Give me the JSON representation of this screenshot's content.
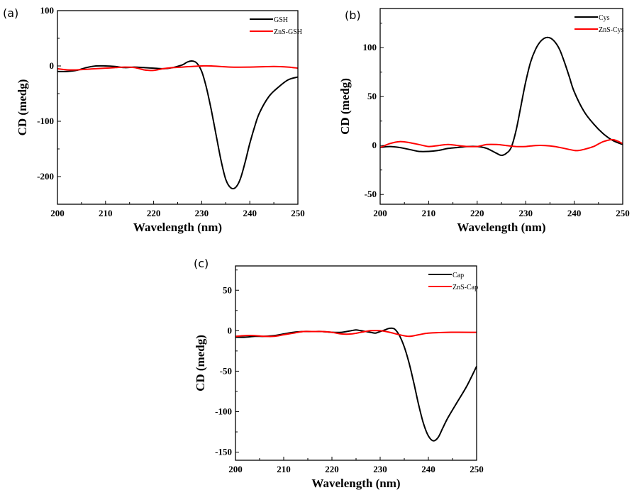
{
  "chart_data": [
    {
      "type": "line",
      "panel_label": "(a)",
      "xlabel": "Wavelength (nm)",
      "ylabel": "CD (medg)",
      "xlim": [
        200,
        250
      ],
      "ylim": [
        -250,
        100
      ],
      "xticks": [
        200,
        210,
        220,
        230,
        240,
        250
      ],
      "yticks": [
        100,
        0,
        -100,
        -200
      ],
      "legend_position": "top-right",
      "grid": false,
      "series": [
        {
          "name": "GSH",
          "color": "#000000",
          "x": [
            200,
            202,
            204,
            206,
            208,
            210,
            212,
            214,
            216,
            218,
            220,
            222,
            224,
            226,
            227,
            228,
            229,
            230,
            231,
            232,
            233,
            234,
            235,
            236,
            237,
            238,
            239,
            240,
            241,
            242,
            244,
            246,
            248,
            250
          ],
          "y": [
            -10,
            -10,
            -8,
            -3,
            0,
            0,
            -1,
            -3,
            -2,
            -3,
            -4,
            -5,
            -3,
            2,
            7,
            9,
            5,
            -10,
            -40,
            -80,
            -125,
            -170,
            -205,
            -220,
            -220,
            -205,
            -175,
            -140,
            -110,
            -85,
            -55,
            -38,
            -25,
            -20
          ]
        },
        {
          "name": "ZnS-GSH",
          "color": "#ff0000",
          "x": [
            200,
            202,
            204,
            206,
            208,
            210,
            212,
            214,
            216,
            218,
            219,
            220,
            222,
            224,
            226,
            228,
            230,
            232,
            236,
            240,
            245,
            248,
            250
          ],
          "y": [
            -5,
            -7,
            -7,
            -6,
            -5,
            -4,
            -3,
            -2,
            -3,
            -7,
            -8,
            -8,
            -5,
            -3,
            -2,
            -1,
            0,
            0,
            -2,
            -2,
            -1,
            -2,
            -4
          ]
        }
      ]
    },
    {
      "type": "line",
      "panel_label": "(b)",
      "xlabel": "Wavelength (nm)",
      "ylabel": "CD (medg)",
      "xlim": [
        200,
        250
      ],
      "ylim": [
        -60,
        140
      ],
      "xticks": [
        200,
        210,
        220,
        230,
        240,
        250
      ],
      "yticks": [
        100,
        50,
        0,
        -50
      ],
      "legend_position": "top-right",
      "grid": false,
      "series": [
        {
          "name": "Cys",
          "color": "#000000",
          "x": [
            200,
            202,
            204,
            206,
            208,
            210,
            212,
            214,
            216,
            218,
            220,
            222,
            224,
            225,
            226,
            227,
            228,
            229,
            230,
            231,
            232,
            233,
            234,
            235,
            236,
            237,
            238,
            239,
            240,
            242,
            244,
            246,
            248,
            250
          ],
          "y": [
            -2,
            -1,
            -2,
            -4,
            -6,
            -6,
            -5,
            -3,
            -2,
            -1,
            -1,
            -3,
            -8,
            -10,
            -8,
            -2,
            15,
            40,
            65,
            85,
            98,
            106,
            110,
            110,
            106,
            98,
            85,
            70,
            55,
            35,
            22,
            12,
            5,
            1
          ]
        },
        {
          "name": "ZnS-Cys",
          "color": "#ff0000",
          "x": [
            200,
            202,
            204,
            206,
            208,
            210,
            212,
            214,
            216,
            218,
            220,
            222,
            224,
            226,
            228,
            230,
            232,
            234,
            236,
            238,
            240,
            241,
            242,
            244,
            246,
            248,
            250
          ],
          "y": [
            -2,
            2,
            4,
            3,
            1,
            -1,
            0,
            1,
            0,
            -1,
            -1,
            1,
            1,
            0,
            -1,
            -1,
            0,
            0,
            -1,
            -3,
            -5,
            -5,
            -4,
            -1,
            4,
            6,
            2
          ]
        }
      ]
    },
    {
      "type": "line",
      "panel_label": "(c)",
      "xlabel": "Wavelength (nm)",
      "ylabel": "CD (medg)",
      "xlim": [
        200,
        250
      ],
      "ylim": [
        -160,
        80
      ],
      "xticks": [
        200,
        210,
        220,
        230,
        240,
        250
      ],
      "yticks": [
        50,
        0,
        -50,
        -100,
        -150
      ],
      "legend_position": "top-right",
      "grid": false,
      "series": [
        {
          "name": "Cap",
          "color": "#000000",
          "x": [
            200,
            202,
            204,
            206,
            208,
            210,
            212,
            214,
            216,
            218,
            220,
            222,
            224,
            225,
            226,
            228,
            229,
            230,
            231,
            232,
            233,
            234,
            235,
            236,
            237,
            238,
            239,
            240,
            241,
            242,
            243,
            244,
            246,
            248,
            250
          ],
          "y": [
            -8,
            -8,
            -7,
            -7,
            -6,
            -4,
            -2,
            -1,
            -1,
            -1,
            -2,
            -2,
            0,
            1,
            0,
            -2,
            -3,
            -1,
            1,
            3,
            2,
            -6,
            -20,
            -40,
            -65,
            -92,
            -115,
            -130,
            -136,
            -132,
            -120,
            -108,
            -88,
            -68,
            -44
          ]
        },
        {
          "name": "ZnS-Cap",
          "color": "#ff0000",
          "x": [
            200,
            202,
            204,
            206,
            208,
            210,
            212,
            214,
            216,
            218,
            220,
            222,
            224,
            226,
            228,
            230,
            232,
            234,
            236,
            238,
            240,
            244,
            250
          ],
          "y": [
            -7,
            -6,
            -6,
            -7,
            -7,
            -5,
            -3,
            -1,
            -1,
            -1,
            -2,
            -4,
            -4,
            -2,
            0,
            0,
            -2,
            -5,
            -7,
            -5,
            -3,
            -2,
            -2
          ]
        }
      ]
    }
  ]
}
